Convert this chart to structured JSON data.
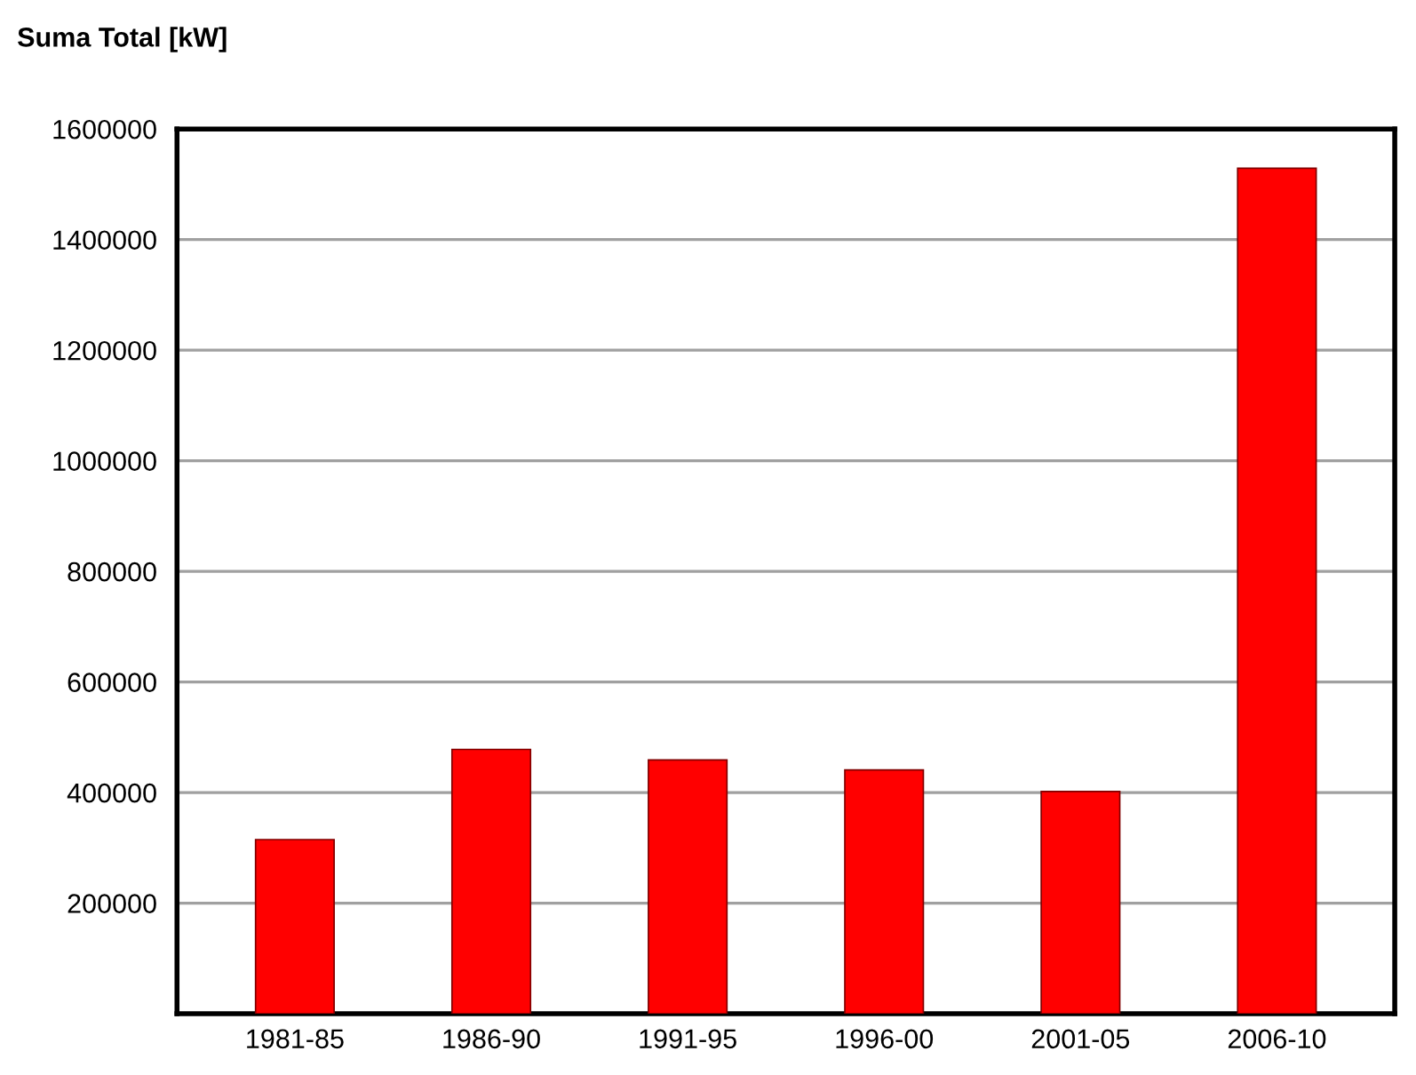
{
  "chart_data": {
    "type": "bar",
    "title": "Suma Total [kW]",
    "categories": [
      "1981-85",
      "1986-90",
      "1991-95",
      "1996-00",
      "2001-05",
      "2006-10"
    ],
    "values": [
      315000,
      478000,
      459000,
      441000,
      402000,
      1529000
    ],
    "color": "#ff0000",
    "ylim": [
      0,
      1600000
    ],
    "yticks": [
      {
        "value": 0,
        "label": null
      },
      200000,
      400000,
      600000,
      800000,
      1000000,
      1200000,
      1400000,
      1600000
    ],
    "grid": "y",
    "legend": false
  }
}
